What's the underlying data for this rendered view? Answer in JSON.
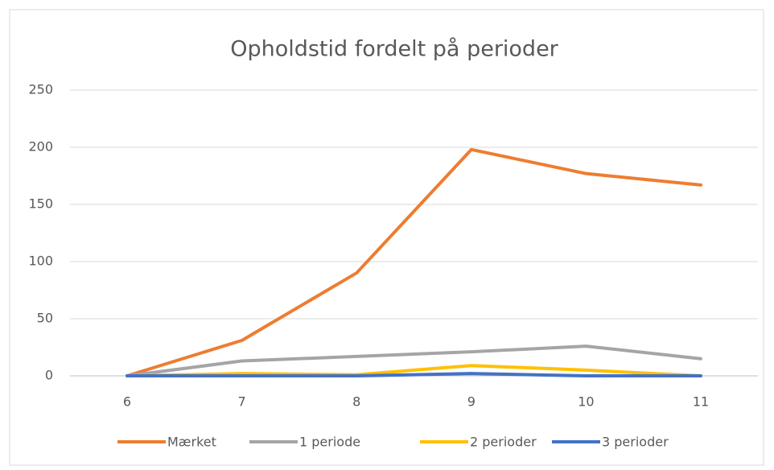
{
  "chart_data": {
    "type": "line",
    "title": "Opholdstid fordelt på perioder",
    "categories": [
      "6",
      "7",
      "8",
      "9",
      "10",
      "11"
    ],
    "series": [
      {
        "name": "Mærket",
        "color": "#ed7d31",
        "values": [
          0,
          31,
          90,
          198,
          177,
          167
        ]
      },
      {
        "name": "1 periode",
        "color": "#a5a5a5",
        "values": [
          0,
          13,
          17,
          21,
          26,
          15
        ]
      },
      {
        "name": "2 perioder",
        "color": "#ffc000",
        "values": [
          0,
          2,
          1,
          9,
          5,
          0
        ]
      },
      {
        "name": "3 perioder",
        "color": "#4472c4",
        "values": [
          0,
          0,
          0,
          2,
          0,
          0
        ]
      }
    ],
    "ylim": [
      0,
      250
    ],
    "yticks": [
      0,
      50,
      100,
      150,
      200,
      250
    ],
    "grid": true,
    "legend": "bottom"
  }
}
